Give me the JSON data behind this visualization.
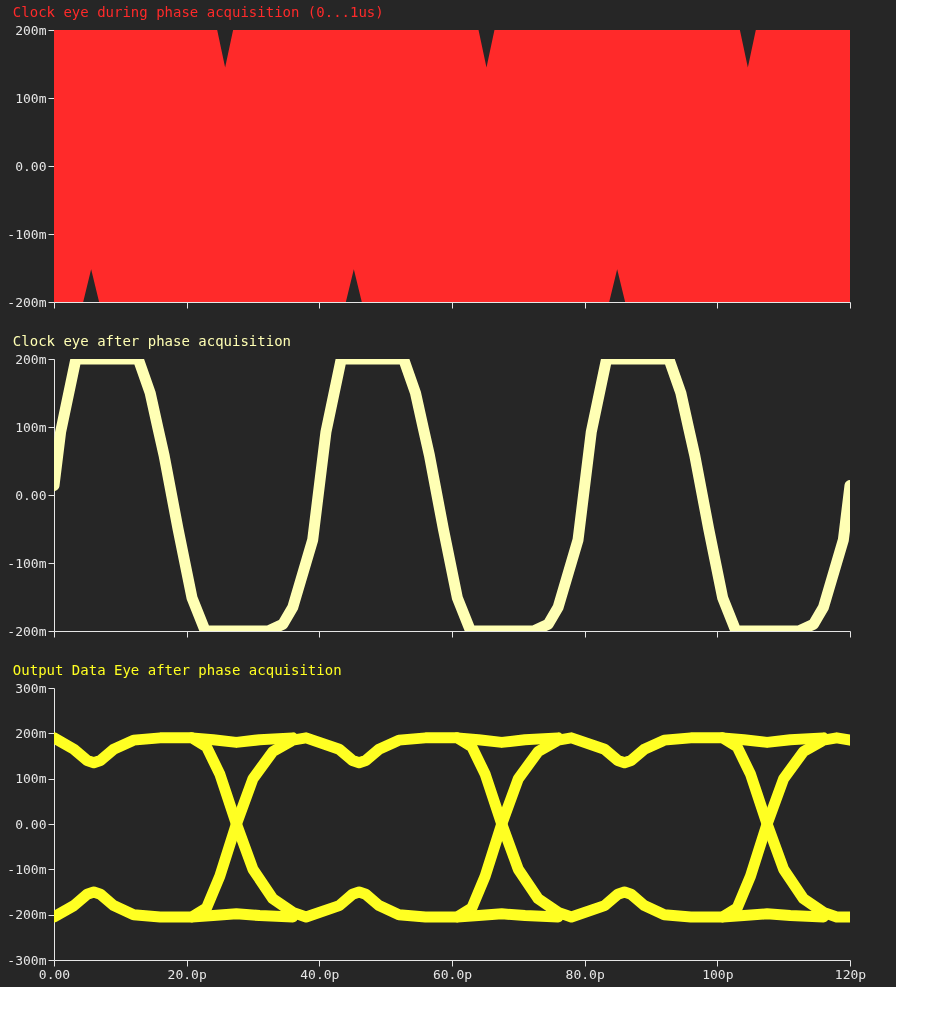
{
  "chart_data": [
    {
      "type": "area",
      "title": "Clock eye during phase acquisition (0...1us)",
      "tick_labels": "y",
      "grid": false,
      "xlim": [
        0,
        120
      ],
      "xticks": [
        {
          "value": 0,
          "label": null
        },
        {
          "value": 20,
          "label": null
        },
        {
          "value": 40,
          "label": null
        },
        {
          "value": 60,
          "label": null
        },
        {
          "value": 80,
          "label": null
        },
        {
          "value": 100,
          "label": null
        },
        {
          "value": 120,
          "label": null
        }
      ],
      "ylim": [
        -200,
        200
      ],
      "yticks": [
        {
          "value": -200,
          "label": "-200m"
        },
        {
          "value": -100,
          "label": "-100m"
        },
        {
          "value": 0,
          "label": "0.00"
        },
        {
          "value": 100,
          "label": "100m"
        },
        {
          "value": 200,
          "label": "200m"
        }
      ],
      "series": [
        {
          "color": "#ff2a2a",
          "x": [
            0,
            24.6,
            25.8,
            27,
            64,
            65.2,
            66.4,
            103.4,
            104.6,
            105.8,
            120
          ],
          "values": [
            200,
            200,
            145,
            200,
            200,
            145,
            200,
            200,
            145,
            200,
            200
          ]
        },
        {
          "color": "#ff2a2a",
          "x": [
            0,
            4.4,
            5.6,
            6.8,
            44,
            45.2,
            46.4,
            83.7,
            84.9,
            86.1,
            120
          ],
          "values": [
            -200,
            -200,
            -152,
            -200,
            -200,
            -152,
            -200,
            -200,
            -152,
            -200,
            -200
          ]
        }
      ]
    },
    {
      "type": "line",
      "title": "Clock eye after phase acquisition",
      "tick_labels": "y",
      "grid": false,
      "xlim": [
        0,
        120
      ],
      "xticks": [
        {
          "value": 0,
          "label": null
        },
        {
          "value": 20,
          "label": null
        },
        {
          "value": 40,
          "label": null
        },
        {
          "value": 60,
          "label": null
        },
        {
          "value": 80,
          "label": null
        },
        {
          "value": 100,
          "label": null
        },
        {
          "value": 120,
          "label": null
        }
      ],
      "ylim": [
        -200,
        200
      ],
      "yticks": [
        {
          "value": -200,
          "label": "-200m"
        },
        {
          "value": -100,
          "label": "-100m"
        },
        {
          "value": 0,
          "label": "0.00"
        },
        {
          "value": 100,
          "label": "100m"
        },
        {
          "value": 200,
          "label": "200m"
        }
      ],
      "series": [
        {
          "color": "#ffffb4",
          "x": [
            0,
            1,
            3.3,
            12.7,
            14.5,
            15.7,
            16.6,
            18.7,
            20.8,
            22.8,
            32.3,
            34.5,
            36,
            39,
            41,
            43.3,
            52.7,
            54.5,
            55.7,
            56.6,
            58.7,
            60.8,
            62.8,
            72.3,
            74.5,
            76,
            79,
            81,
            83.3,
            92.7,
            94.5,
            95.7,
            96.6,
            98.7,
            100.8,
            102.8,
            112.3,
            114.5,
            116,
            119,
            120
          ],
          "values": [
            14,
            93,
            200,
            200,
            150,
            97,
            58,
            -50,
            -151,
            -200,
            -200,
            -190,
            -165,
            -66,
            93,
            200,
            200,
            150,
            97,
            58,
            -50,
            -151,
            -200,
            -200,
            -190,
            -165,
            -66,
            93,
            200,
            200,
            150,
            97,
            58,
            -50,
            -151,
            -200,
            -200,
            -190,
            -165,
            -66,
            14
          ]
        }
      ]
    },
    {
      "type": "line",
      "title": "Output Data Eye after phase acquisition",
      "grid": false,
      "xlim": [
        0,
        120
      ],
      "xticks": [
        {
          "value": 0,
          "label": "0.00"
        },
        {
          "value": 20,
          "label": "20.0p"
        },
        {
          "value": 40,
          "label": "40.0p"
        },
        {
          "value": 60,
          "label": "60.0p"
        },
        {
          "value": 80,
          "label": "80.0p"
        },
        {
          "value": 100,
          "label": "100p"
        },
        {
          "value": 120,
          "label": "120p"
        }
      ],
      "ylim": [
        -300,
        300
      ],
      "yticks": [
        {
          "value": -300,
          "label": "-300m"
        },
        {
          "value": -200,
          "label": "-200m"
        },
        {
          "value": -100,
          "label": "-100m"
        },
        {
          "value": 0,
          "label": "0.00"
        },
        {
          "value": 100,
          "label": "100m"
        },
        {
          "value": 200,
          "label": "200m"
        },
        {
          "value": 300,
          "label": "300m"
        }
      ],
      "series": [
        {
          "color": "#ffff22",
          "x": [
            0,
            3,
            5,
            6,
            7,
            9,
            12,
            16,
            20.8,
            23,
            25,
            27.5,
            30,
            33,
            36,
            38,
            43,
            45,
            46,
            47,
            49,
            52,
            56,
            60.8,
            63,
            65,
            67.5,
            70,
            73,
            76,
            78,
            83,
            85,
            86,
            87,
            89,
            92,
            96,
            100.8,
            103,
            105,
            107.5,
            110,
            113,
            116,
            118,
            120
          ],
          "values": [
            190,
            165,
            140,
            135,
            140,
            165,
            185,
            190,
            190,
            170,
            110,
            0,
            -100,
            -165,
            -195,
            -205,
            -180,
            -155,
            -150,
            -155,
            -180,
            -200,
            -205,
            -205,
            -185,
            -115,
            0,
            100,
            160,
            185,
            190,
            165,
            140,
            135,
            140,
            165,
            185,
            190,
            190,
            170,
            110,
            0,
            -100,
            -165,
            -195,
            -205,
            -205
          ]
        },
        {
          "color": "#ffff22",
          "x": [
            0,
            3,
            5,
            6,
            7,
            9,
            12,
            16,
            20.8,
            23,
            25,
            27.5,
            30,
            33,
            36,
            38,
            43,
            45,
            46,
            47,
            49,
            52,
            56,
            60.8,
            63,
            65,
            67.5,
            70,
            73,
            76,
            78,
            83,
            85,
            86,
            87,
            89,
            92,
            96,
            100.8,
            103,
            105,
            107.5,
            110,
            113,
            116,
            118,
            120
          ],
          "values": [
            -205,
            -180,
            -155,
            -150,
            -155,
            -180,
            -200,
            -205,
            -205,
            -185,
            -115,
            0,
            100,
            160,
            185,
            190,
            165,
            140,
            135,
            140,
            165,
            185,
            190,
            190,
            170,
            110,
            0,
            -100,
            -165,
            -195,
            -205,
            -180,
            -155,
            -150,
            -155,
            -180,
            -200,
            -205,
            -205,
            -185,
            -115,
            0,
            100,
            160,
            185,
            190,
            185
          ]
        },
        {
          "color": "#ffff22",
          "x": [
            20.8,
            24,
            27.5,
            31,
            36
          ],
          "values": [
            190,
            186,
            180,
            186,
            190
          ]
        },
        {
          "color": "#ffff22",
          "x": [
            20.8,
            24,
            27.5,
            31,
            36
          ],
          "values": [
            -205,
            -202,
            -198,
            -202,
            -205
          ]
        },
        {
          "color": "#ffff22",
          "x": [
            60.8,
            64,
            67.5,
            71,
            76
          ],
          "values": [
            190,
            186,
            180,
            186,
            190
          ]
        },
        {
          "color": "#ffff22",
          "x": [
            60.8,
            64,
            67.5,
            71,
            76
          ],
          "values": [
            -205,
            -202,
            -198,
            -202,
            -205
          ]
        },
        {
          "color": "#ffff22",
          "x": [
            100.8,
            104,
            107.5,
            111,
            116
          ],
          "values": [
            190,
            186,
            180,
            186,
            190
          ]
        },
        {
          "color": "#ffff22",
          "x": [
            100.8,
            104,
            107.5,
            111,
            116
          ],
          "values": [
            -205,
            -202,
            -198,
            -202,
            -205
          ]
        }
      ]
    }
  ]
}
